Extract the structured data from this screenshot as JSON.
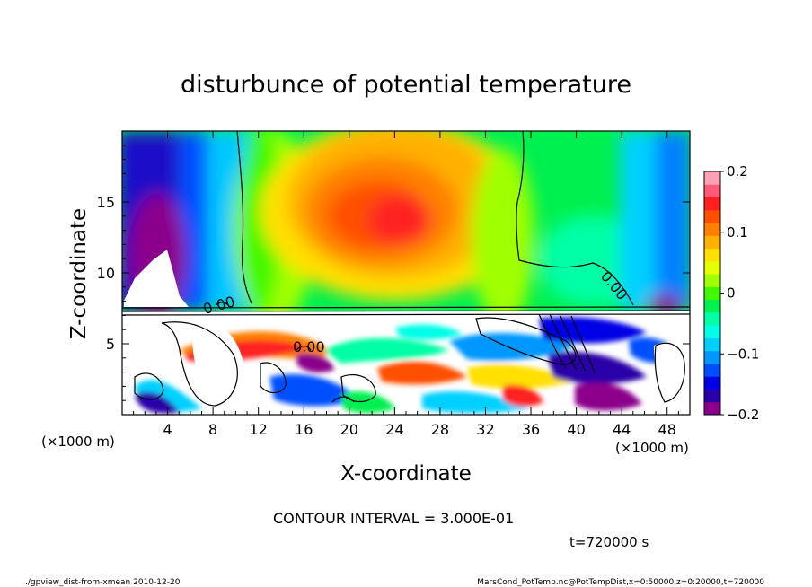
{
  "chart_data": {
    "type": "heatmap",
    "title": "disturbunce of potential temperature",
    "xlabel": "X-coordinate",
    "ylabel": "Z-coordinate",
    "x_unit_label": "(×1000 m)",
    "x_unit_label_right": "(×1000 m)",
    "xlim": [
      0,
      50
    ],
    "ylim": [
      0,
      20
    ],
    "x_ticks": [
      "4",
      "8",
      "12",
      "16",
      "20",
      "24",
      "28",
      "32",
      "36",
      "40",
      "44",
      "48"
    ],
    "x_tick_values": [
      4,
      8,
      12,
      16,
      20,
      24,
      28,
      32,
      36,
      40,
      44,
      48
    ],
    "y_ticks": [
      "5",
      "10",
      "15"
    ],
    "y_tick_values": [
      5,
      10,
      15
    ],
    "colorbar": {
      "ticks": [
        "0.2",
        "0.1",
        "0",
        "−0.1",
        "−0.2"
      ],
      "tick_values": [
        0.2,
        0.1,
        0,
        -0.1,
        -0.2
      ],
      "range": [
        -0.2,
        0.2
      ],
      "colors": [
        "#8b008b",
        "#2a00a8",
        "#0000e6",
        "#0050ff",
        "#0098ff",
        "#00d0ff",
        "#00ffe6",
        "#00ffa6",
        "#00f050",
        "#40f800",
        "#a0ff00",
        "#e6ff00",
        "#ffe000",
        "#ffb000",
        "#ff8000",
        "#ff5000",
        "#ff2020",
        "#ff5a78",
        "#ffa0b4"
      ]
    },
    "contour_labels": [
      "0.00",
      "0.00",
      "0.00"
    ],
    "contour_interval": "CONTOUR INTERVAL = 3.000E-01",
    "time": "t=720000 s"
  },
  "footer": {
    "left": "./gpview_dist-from-xmean  2010-12-20",
    "right": "MarsCond_PotTemp.nc@PotTempDist,x=0:50000,z=0:20000,t=720000"
  }
}
